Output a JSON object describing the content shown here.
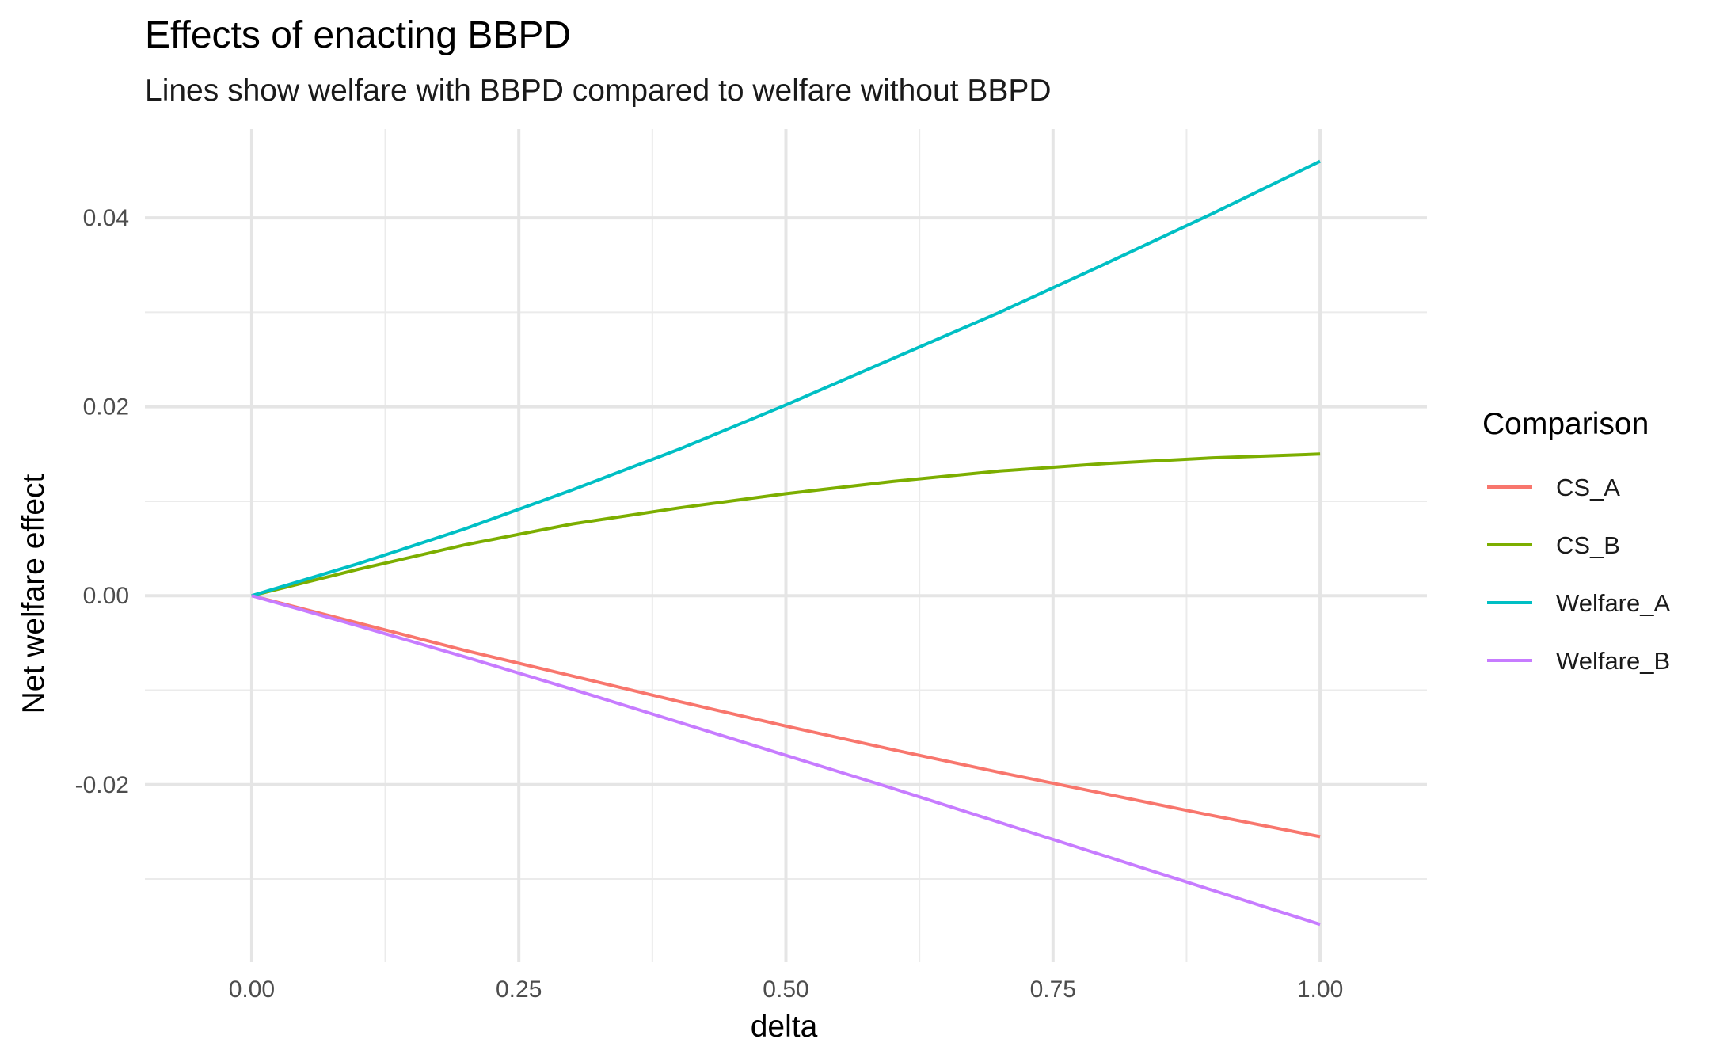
{
  "chart_data": {
    "type": "line",
    "title": "Effects of enacting BBPD",
    "subtitle": "Lines show welfare with BBPD compared to welfare without BBPD",
    "xlabel": "delta",
    "ylabel": "Net welfare effect",
    "xlim": [
      -0.1,
      1.1
    ],
    "ylim": [
      -0.0388,
      0.0494
    ],
    "x_ticks": [
      0,
      0.25,
      0.5,
      0.75,
      1
    ],
    "x_tick_labels": [
      "0.00",
      "0.25",
      "0.50",
      "0.75",
      "1.00"
    ],
    "x_minor_ticks": [
      0.125,
      0.375,
      0.625,
      0.875
    ],
    "y_ticks": [
      -0.02,
      0,
      0.02,
      0.04
    ],
    "y_tick_labels": [
      "-0.02",
      "0.00",
      "0.02",
      "0.04"
    ],
    "y_minor_ticks": [
      -0.03,
      -0.01,
      0.01,
      0.03
    ],
    "grid": true,
    "legend": {
      "title": "Comparison",
      "position": "right"
    },
    "x": [
      0,
      0.1,
      0.2,
      0.3,
      0.4,
      0.5,
      0.6,
      0.7,
      0.8,
      0.9,
      1.0
    ],
    "series": [
      {
        "name": "CS_A",
        "color": "#F8766D",
        "values": [
          0,
          -0.0029,
          -0.0058,
          -0.0085,
          -0.0112,
          -0.0138,
          -0.0163,
          -0.0187,
          -0.021,
          -0.0233,
          -0.0255
        ]
      },
      {
        "name": "CS_B",
        "color": "#7CAE00",
        "values": [
          0,
          0.0028,
          0.0054,
          0.0076,
          0.0093,
          0.0108,
          0.0121,
          0.0132,
          0.014,
          0.0146,
          0.015
        ]
      },
      {
        "name": "Welfare_A",
        "color": "#00BFC4",
        "values": [
          0,
          0.0034,
          0.0071,
          0.0112,
          0.0155,
          0.0202,
          0.0251,
          0.03,
          0.0352,
          0.0405,
          0.046
        ]
      },
      {
        "name": "Welfare_B",
        "color": "#C77CFF",
        "values": [
          0,
          -0.0032,
          -0.0065,
          -0.0099,
          -0.0134,
          -0.0169,
          -0.0204,
          -0.024,
          -0.0276,
          -0.0312,
          -0.0348
        ]
      }
    ]
  }
}
